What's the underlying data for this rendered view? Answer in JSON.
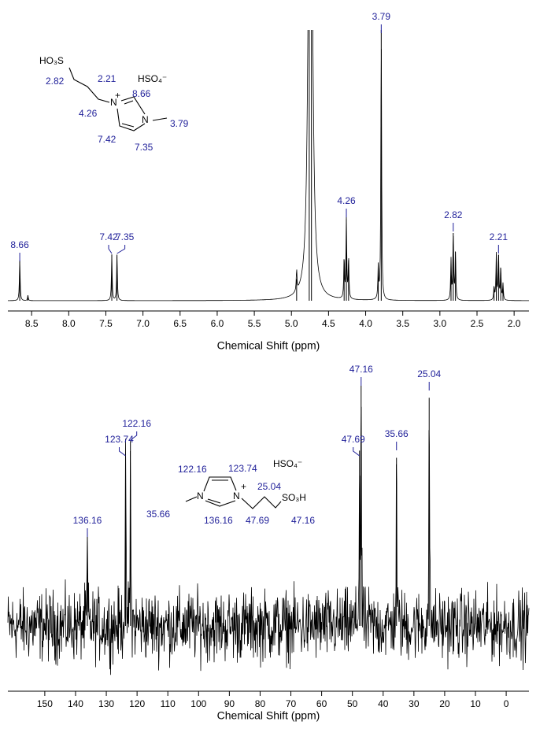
{
  "chart_data": [
    {
      "type": "spectrum",
      "x_label": "Chemical Shift (ppm)",
      "color": "#000000",
      "label_color": "#1f1f99",
      "xlim": [
        8.82,
        1.8
      ],
      "xticks": [
        8.5,
        {
          "value": 8.0,
          "label": "8.0"
        },
        7.5,
        {
          "value": 7.0,
          "label": "7.0"
        },
        6.5,
        {
          "value": 6.0,
          "label": "6.0"
        },
        5.5,
        {
          "value": 5.0,
          "label": "5.0"
        },
        4.5,
        {
          "value": 4.0,
          "label": "4.0"
        },
        3.5,
        {
          "value": 3.0,
          "label": "3.0"
        },
        2.5,
        {
          "value": 2.0,
          "label": "2.0"
        }
      ],
      "ylim": [
        0,
        100
      ],
      "lines": {
        "x": [
          8.66,
          8.55,
          7.42,
          7.35,
          4.93,
          4.76,
          4.73,
          4.29,
          4.26,
          4.23,
          3.83,
          3.79,
          2.85,
          2.82,
          2.79,
          2.27,
          2.24,
          2.21,
          2.18,
          2.15
        ],
        "values": [
          15,
          2,
          17,
          17,
          8,
          120,
          120,
          15,
          30,
          15,
          12,
          100,
          15,
          25,
          18,
          5,
          17,
          17,
          12,
          6
        ]
      },
      "peak_labels": [
        8.66,
        7.42,
        7.35,
        4.26,
        3.79,
        2.82,
        2.21
      ],
      "structure_labels": [
        "HO₃S",
        "2.82",
        "2.21",
        "HSO₄⁻",
        "+",
        "8.66",
        "N",
        "4.26",
        "N",
        "3.79",
        "7.42",
        "7.35"
      ]
    },
    {
      "type": "spectrum",
      "x_label": "Chemical Shift (ppm)",
      "color": "#000000",
      "label_color": "#1f1f99",
      "xlim": [
        162,
        -7.4
      ],
      "xticks": [
        150,
        140,
        130,
        120,
        110,
        100,
        90,
        80,
        70,
        60,
        50,
        40,
        30,
        20,
        10,
        0
      ],
      "ylim": [
        0,
        100
      ],
      "lines": {
        "x": [
          136.16,
          123.74,
          122.16,
          47.69,
          47.16,
          35.66,
          25.04
        ],
        "values": [
          37,
          70,
          77,
          73,
          100,
          70,
          95
        ]
      },
      "peak_labels": [
        136.16,
        123.74,
        122.16,
        47.69,
        47.16,
        35.66,
        25.04
      ],
      "structure_labels": [
        "122.16",
        "123.74",
        "HSO₄⁻",
        "N",
        "+",
        "N",
        "25.04",
        "SO₃H",
        "35.66",
        "136.16",
        "47.69",
        "47.16"
      ]
    }
  ]
}
